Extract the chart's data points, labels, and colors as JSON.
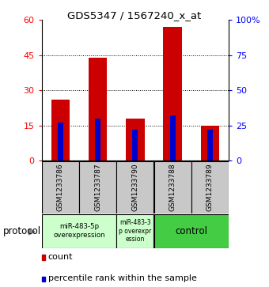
{
  "title": "GDS5347 / 1567240_x_at",
  "samples": [
    "GSM1233786",
    "GSM1233787",
    "GSM1233790",
    "GSM1233788",
    "GSM1233789"
  ],
  "count_values": [
    26,
    44,
    18,
    57,
    15
  ],
  "percentile_values": [
    27,
    30,
    22,
    32,
    22
  ],
  "ylim_left": [
    0,
    60
  ],
  "ylim_right": [
    0,
    100
  ],
  "yticks_left": [
    0,
    15,
    30,
    45,
    60
  ],
  "yticks_right": [
    0,
    25,
    50,
    75,
    100
  ],
  "ytick_labels_right": [
    "0",
    "25",
    "50",
    "75",
    "100%"
  ],
  "bar_color": "#cc0000",
  "percentile_color": "#0000cc",
  "bar_width": 0.5,
  "perc_bar_width": 0.15,
  "sample_box_color": "#c8c8c8",
  "group1_color": "#ccffcc",
  "group2_color": "#ccffcc",
  "group3_color": "#44cc44",
  "protocol_label": "protocol"
}
